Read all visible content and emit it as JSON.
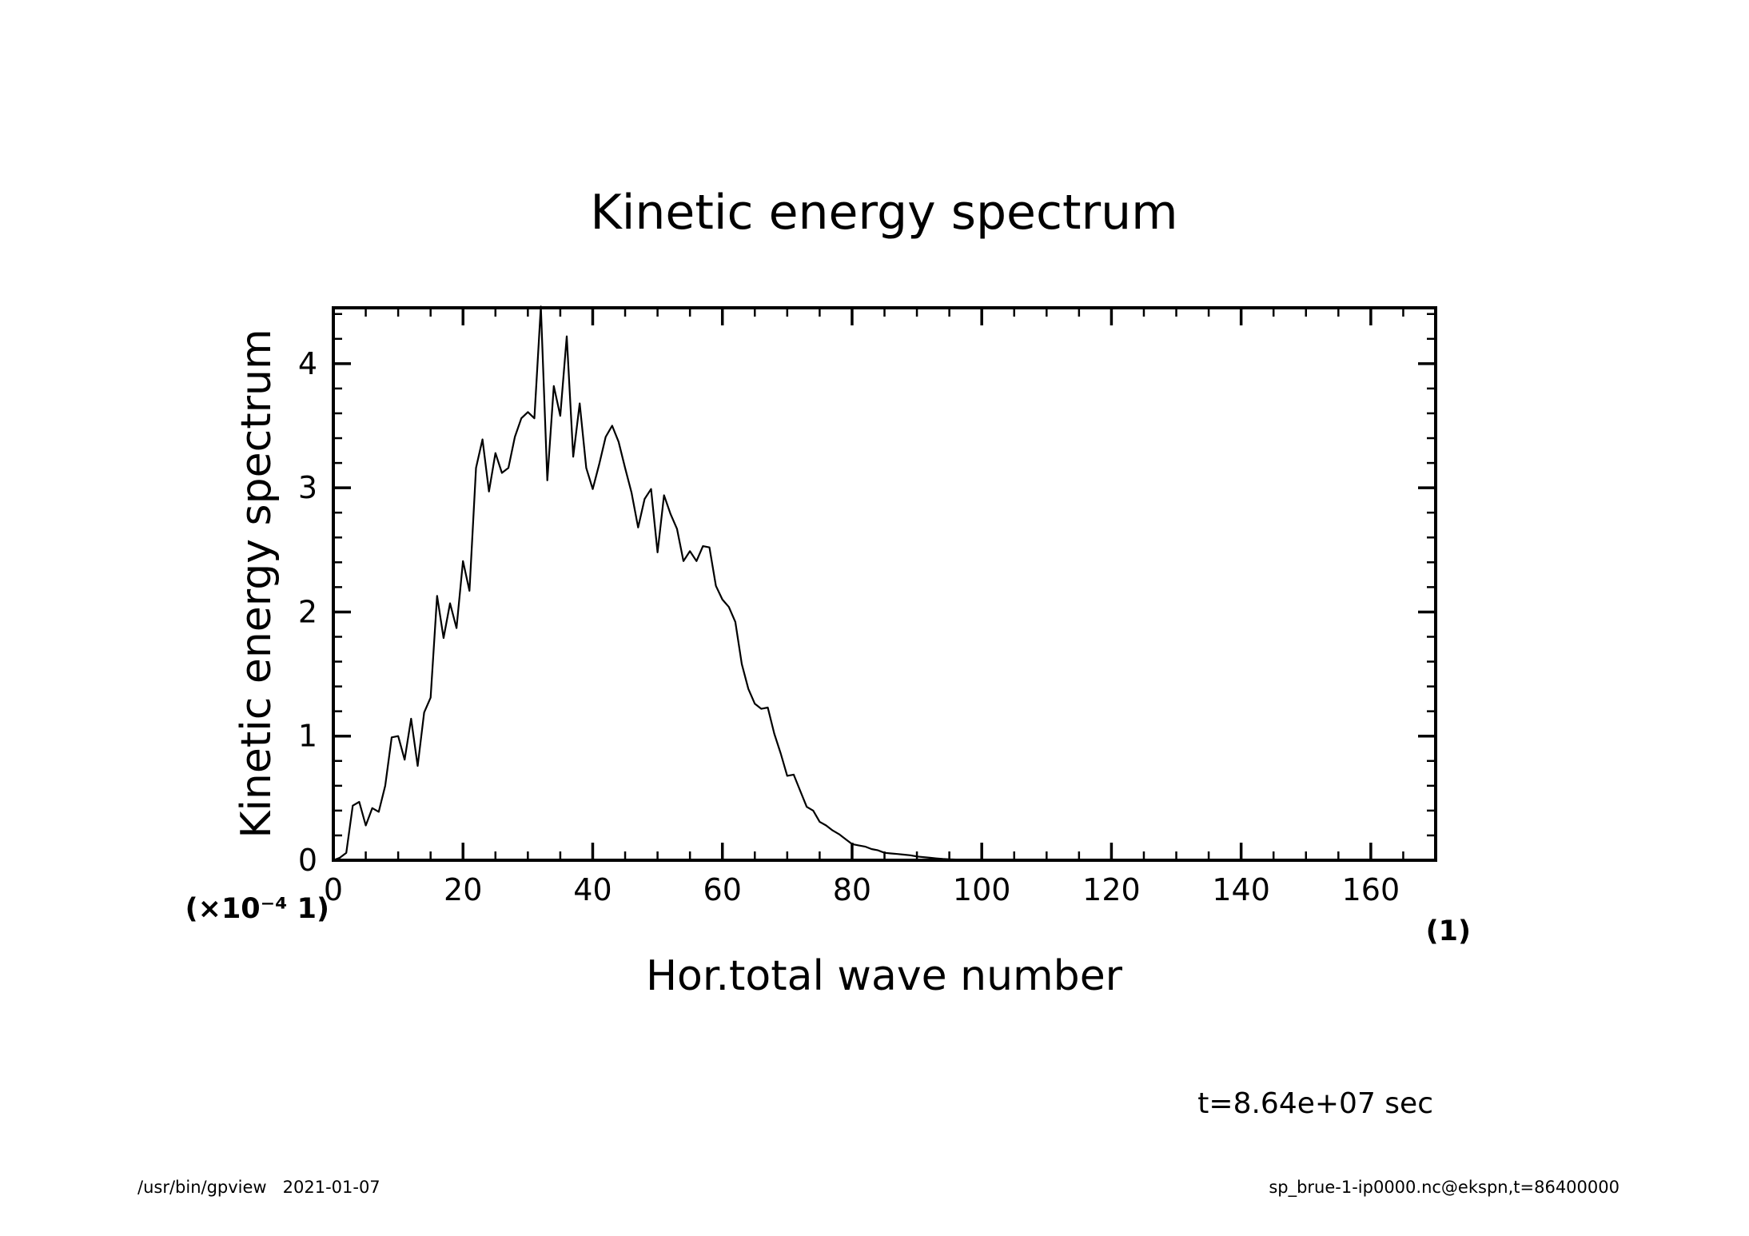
{
  "chart_data": {
    "type": "line",
    "title": "Kinetic energy spectrum",
    "xlabel": "Hor.total wave number",
    "ylabel": "Kinetic energy spectrum",
    "x_unit": "(1)",
    "y_unit": "(×10⁻⁴ 1)",
    "y_scale_note": "×10^-4",
    "xlim": [
      0,
      170
    ],
    "ylim": [
      0,
      4.45
    ],
    "x_ticks": [
      0,
      20,
      40,
      60,
      80,
      100,
      120,
      140,
      160
    ],
    "y_ticks": [
      0,
      1,
      2,
      3,
      4
    ],
    "x_tick_labels": [
      "0",
      "20",
      "40",
      "60",
      "80",
      "100",
      "120",
      "140",
      "160"
    ],
    "y_tick_labels": [
      "0",
      "1",
      "2",
      "3",
      "4"
    ],
    "grid": false,
    "x": [
      0,
      1,
      2,
      3,
      4,
      5,
      6,
      7,
      8,
      9,
      10,
      11,
      12,
      13,
      14,
      15,
      16,
      17,
      18,
      19,
      20,
      21,
      22,
      23,
      24,
      25,
      26,
      27,
      28,
      29,
      30,
      31,
      32,
      33,
      34,
      35,
      36,
      37,
      38,
      39,
      40,
      41,
      42,
      43,
      44,
      45,
      46,
      47,
      48,
      49,
      50,
      51,
      52,
      53,
      54,
      55,
      56,
      57,
      58,
      59,
      60,
      61,
      62,
      63,
      64,
      65,
      66,
      67,
      68,
      69,
      70,
      71,
      72,
      73,
      74,
      75,
      76,
      77,
      78,
      79,
      80,
      81,
      82,
      83,
      84,
      85,
      86,
      87,
      88,
      89,
      90,
      91,
      92,
      93,
      94,
      95,
      96,
      97,
      98,
      99,
      100,
      110,
      120,
      130,
      140,
      150,
      160,
      170
    ],
    "values": [
      0.0,
      0.02,
      0.06,
      0.44,
      0.47,
      0.28,
      0.42,
      0.39,
      0.6,
      0.99,
      1.0,
      0.81,
      1.14,
      0.76,
      1.19,
      1.31,
      2.13,
      1.79,
      2.07,
      1.87,
      2.41,
      2.17,
      3.16,
      3.39,
      2.97,
      3.28,
      3.12,
      3.16,
      3.41,
      3.56,
      3.61,
      3.56,
      4.46,
      3.06,
      3.82,
      3.58,
      4.22,
      3.25,
      3.68,
      3.16,
      2.99,
      3.19,
      3.41,
      3.5,
      3.37,
      3.16,
      2.96,
      2.68,
      2.91,
      2.99,
      2.48,
      2.94,
      2.79,
      2.67,
      2.41,
      2.49,
      2.41,
      2.53,
      2.52,
      2.21,
      2.1,
      2.04,
      1.92,
      1.58,
      1.38,
      1.26,
      1.22,
      1.23,
      1.02,
      0.86,
      0.68,
      0.69,
      0.56,
      0.43,
      0.4,
      0.31,
      0.28,
      0.24,
      0.21,
      0.17,
      0.13,
      0.12,
      0.11,
      0.09,
      0.08,
      0.06,
      0.055,
      0.05,
      0.045,
      0.04,
      0.03,
      0.025,
      0.02,
      0.015,
      0.01,
      0.008,
      0.006,
      0.004,
      0.003,
      0.002,
      0.001,
      0.0,
      0.0,
      0.0,
      0.0,
      0.0,
      0.0,
      0.0
    ]
  },
  "annotations": {
    "time_label": "t=8.64e+07 sec",
    "footer_left": "/usr/bin/gpview   2021-01-07",
    "footer_right": "sp_brue-1-ip0000.nc@ekspn,t=86400000"
  }
}
